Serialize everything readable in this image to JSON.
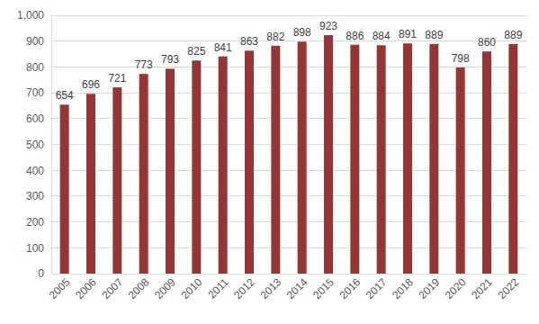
{
  "chart_data": {
    "type": "bar",
    "categories": [
      "2005",
      "2006",
      "2007",
      "2008",
      "2009",
      "2010",
      "2011",
      "2012",
      "2013",
      "2014",
      "2015",
      "2016",
      "2017",
      "2018",
      "2019",
      "2020",
      "2021",
      "2022"
    ],
    "values": [
      654,
      696,
      721,
      773,
      793,
      825,
      841,
      863,
      882,
      898,
      923,
      886,
      884,
      891,
      889,
      798,
      860,
      889
    ],
    "color": "#963634",
    "ylim": [
      0,
      1000
    ],
    "yticks": [
      0,
      100,
      200,
      300,
      400,
      500,
      600,
      700,
      800,
      900,
      {
        "value": 1000,
        "label": "1,000"
      }
    ],
    "grid": true,
    "data_labels": true
  }
}
